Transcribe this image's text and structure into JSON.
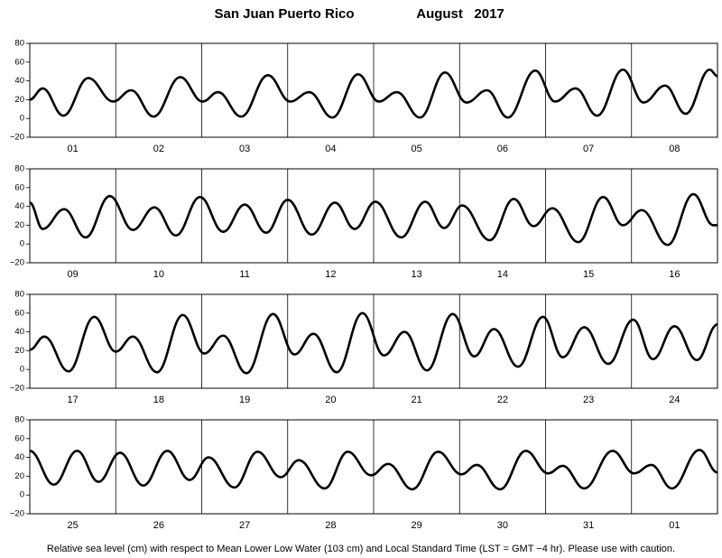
{
  "header": {
    "location": "San Juan Puerto Rico",
    "month": "August   2017"
  },
  "footer": "Relative sea level (cm) with respect to Mean Lower Low Water (103 cm) and Local Standard Time (LST = GMT −4 hr). Please use with caution.",
  "chart_data": [
    {
      "type": "line",
      "categories": [
        "01",
        "02",
        "03",
        "04",
        "05",
        "06",
        "07",
        "08"
      ],
      "x": [
        0,
        0.15,
        0.39,
        0.68,
        0.97,
        1.18,
        1.44,
        1.75,
        2.01,
        2.19,
        2.46,
        2.77,
        3.03,
        3.25,
        3.52,
        3.82,
        4.06,
        4.27,
        4.54,
        4.83,
        5.08,
        5.32,
        5.56,
        5.88,
        6.11,
        6.35,
        6.6,
        6.9,
        7.14,
        7.39,
        7.63,
        7.91,
        8
      ],
      "series": [
        {
          "color": "#000000",
          "values": [
            20,
            32,
            3,
            43,
            18,
            30,
            2,
            44,
            18,
            28,
            2,
            46,
            18,
            28,
            1,
            47,
            18,
            28,
            1,
            49,
            17,
            30,
            1,
            51,
            18,
            32,
            3,
            52,
            17,
            35,
            5,
            52,
            45
          ]
        }
      ],
      "xlim": [
        0,
        8
      ],
      "ylim": [
        -20,
        80
      ],
      "yticks": [
        {
          "value": -20,
          "label": "−20"
        },
        0,
        20,
        40,
        60,
        80
      ]
    },
    {
      "type": "line",
      "categories": [
        "09",
        "10",
        "11",
        "12",
        "13",
        "14",
        "15",
        "16"
      ],
      "x": [
        0,
        0.15,
        0.4,
        0.65,
        0.93,
        1.2,
        1.45,
        1.7,
        1.98,
        2.25,
        2.5,
        2.75,
        3.0,
        3.28,
        3.55,
        3.78,
        4.02,
        4.32,
        4.6,
        4.82,
        5.03,
        5.35,
        5.63,
        5.86,
        6.08,
        6.38,
        6.67,
        6.9,
        7.12,
        7.42,
        7.72,
        7.95,
        8
      ],
      "series": [
        {
          "color": "#000000",
          "values": [
            44,
            16,
            37,
            7,
            51,
            15,
            39,
            9,
            50,
            13,
            42,
            12,
            47,
            10,
            44,
            16,
            45,
            7,
            45,
            17,
            41,
            4,
            48,
            19,
            38,
            2,
            50,
            20,
            36,
            -1,
            53,
            20,
            20
          ]
        }
      ],
      "xlim": [
        0,
        8
      ],
      "ylim": [
        -20,
        80
      ],
      "yticks": [
        {
          "value": -20,
          "label": "−20"
        },
        0,
        20,
        40,
        60,
        80
      ]
    },
    {
      "type": "line",
      "categories": [
        "17",
        "18",
        "19",
        "20",
        "21",
        "22",
        "23",
        "24"
      ],
      "x": [
        0,
        0.17,
        0.45,
        0.75,
        1.0,
        1.2,
        1.48,
        1.78,
        2.03,
        2.25,
        2.52,
        2.83,
        3.08,
        3.3,
        3.57,
        3.87,
        4.12,
        4.36,
        4.62,
        4.92,
        5.17,
        5.4,
        5.68,
        5.97,
        6.2,
        6.45,
        6.73,
        7.02,
        7.25,
        7.5,
        7.76,
        8
      ],
      "series": [
        {
          "color": "#000000",
          "values": [
            21,
            35,
            -2,
            56,
            19,
            35,
            -3,
            58,
            17,
            36,
            -4,
            59,
            16,
            38,
            -3,
            60,
            15,
            40,
            -1,
            59,
            14,
            43,
            3,
            56,
            13,
            45,
            6,
            53,
            11,
            46,
            10,
            48
          ]
        }
      ],
      "xlim": [
        0,
        8
      ],
      "ylim": [
        -20,
        80
      ],
      "yticks": [
        {
          "value": -20,
          "label": "−20"
        },
        0,
        20,
        40,
        60,
        80
      ]
    },
    {
      "type": "line",
      "categories": [
        "25",
        "26",
        "27",
        "28",
        "29",
        "30",
        "31",
        "01"
      ],
      "x": [
        0,
        0.28,
        0.55,
        0.8,
        1.05,
        1.32,
        1.6,
        1.86,
        2.08,
        2.38,
        2.65,
        2.92,
        3.13,
        3.43,
        3.7,
        3.97,
        4.17,
        4.45,
        4.75,
        5.02,
        5.2,
        5.47,
        5.77,
        6.03,
        6.2,
        6.45,
        6.78,
        7.03,
        7.23,
        7.47,
        7.79,
        8
      ],
      "series": [
        {
          "color": "#000000",
          "values": [
            47,
            11,
            47,
            14,
            45,
            10,
            47,
            16,
            40,
            8,
            46,
            19,
            37,
            7,
            46,
            21,
            33,
            6,
            46,
            22,
            32,
            6,
            47,
            23,
            31,
            7,
            47,
            23,
            32,
            7,
            48,
            24
          ]
        }
      ],
      "xlim": [
        0,
        8
      ],
      "ylim": [
        -20,
        80
      ],
      "yticks": [
        {
          "value": -20,
          "label": "−20"
        },
        0,
        20,
        40,
        60,
        80
      ]
    }
  ]
}
